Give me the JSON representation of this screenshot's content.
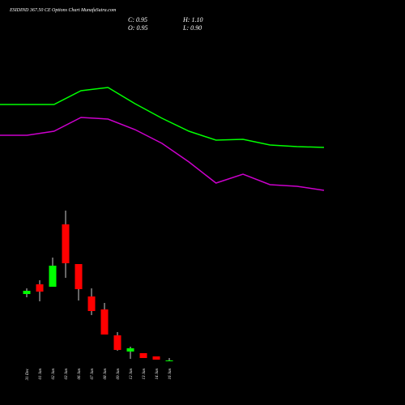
{
  "header": {
    "title": "ESIDIND 367.50 CE Options Chart MunafaSutra.com",
    "info": [
      "C: 0.95",
      "H: 1.10",
      "O: 0.95",
      "L: 0.90"
    ]
  },
  "chart_data": [
    {
      "type": "candlestick",
      "categories": [
        "31 Dec",
        "01 Jan",
        "02 Jan",
        "03 Jan",
        "06 Jan",
        "07 Jan",
        "08 Jan",
        "09 Jan",
        "12 Jan",
        "13 Jan",
        "14 Jan",
        "16 Jan"
      ],
      "open": [
        5.05,
        5.65,
        5.5,
        9.35,
        6.9,
        4.9,
        4.1,
        2.5,
        1.5,
        1.4,
        1.2,
        0.95
      ],
      "high": [
        5.4,
        5.9,
        7.3,
        10.2,
        6.9,
        5.4,
        4.5,
        2.7,
        1.8,
        1.4,
        1.2,
        1.1
      ],
      "low": [
        4.85,
        4.6,
        5.5,
        6.05,
        4.65,
        3.75,
        2.55,
        1.55,
        1.05,
        1.1,
        1.0,
        0.9
      ],
      "close": [
        5.25,
        5.2,
        6.8,
        6.95,
        5.35,
        4.0,
        2.55,
        1.6,
        1.7,
        1.1,
        1.0,
        0.95
      ],
      "up_color": "#00ff00",
      "down_color": "#ff0000",
      "ylim": [
        0,
        23.2
      ]
    },
    {
      "type": "line",
      "x": [
        0,
        1,
        2,
        3,
        4,
        5,
        6,
        7,
        8,
        9,
        10,
        11,
        12
      ],
      "xlim": [
        0,
        12
      ],
      "ylim": [
        0,
        23.2
      ],
      "series": [
        {
          "color": "#00ff00",
          "values": [
            16.75,
            16.75,
            16.75,
            17.6,
            17.8,
            16.8,
            15.9,
            15.1,
            14.55,
            14.6,
            14.25,
            14.15,
            14.1
          ]
        },
        {
          "color": "#cc00cc",
          "values": [
            14.85,
            14.85,
            15.1,
            15.95,
            15.85,
            15.2,
            14.35,
            13.2,
            11.9,
            12.45,
            11.8,
            11.7,
            11.45
          ]
        }
      ]
    }
  ]
}
